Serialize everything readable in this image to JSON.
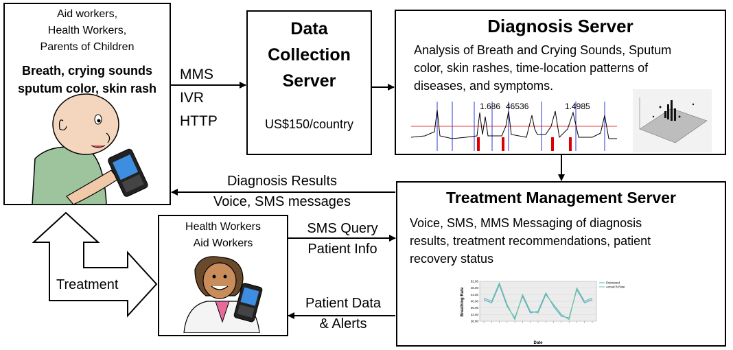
{
  "user_box": {
    "subtitle_lines": [
      "Aid workers,",
      "Health Workers,",
      "Parents of Children"
    ],
    "bold_lines": [
      "Breath, crying sounds",
      "sputum color, skin rash"
    ]
  },
  "protocols": [
    "MMS",
    "IVR",
    "HTTP"
  ],
  "data_collection": {
    "title_lines": [
      "Data",
      "Collection",
      "Server"
    ],
    "cost": "US$150/country"
  },
  "diagnosis_server": {
    "title": "Diagnosis Server",
    "description_lines": [
      "Analysis of Breath and Crying Sounds, Sputum",
      "color, skin rashes, time-location patterns of",
      "diseases, and symptoms."
    ],
    "waveform_labels": [
      "1.686",
      "46536",
      "1.4985"
    ]
  },
  "diagnosis_results": {
    "lines": [
      "Diagnosis Results",
      "Voice, SMS messages"
    ]
  },
  "treatment_server": {
    "title": "Treatment Management Server",
    "description_lines": [
      "Voice, SMS, MMS Messaging of diagnosis",
      "results, treatment recommendations, patient",
      "recovery status"
    ]
  },
  "health_box": {
    "lines": [
      "Health Workers",
      "Aid Workers"
    ]
  },
  "sms_query": {
    "lines": [
      "SMS Query",
      "Patient Info"
    ]
  },
  "patient_data": {
    "lines": [
      "Patient Data",
      "& Alerts"
    ]
  },
  "treatment_label": "Treatment",
  "breathing_chart": {
    "type": "line",
    "ylabel": "Breathing Rate",
    "xlabel": "Date",
    "ylim": [
      28,
      52
    ],
    "yticks": [
      "52.00",
      "48.00",
      "44.00",
      "40.00",
      "36.00",
      "32.00",
      "28.00"
    ],
    "legend": [
      "Estimated",
      "Actual B.Rate"
    ],
    "series": [
      {
        "name": "Estimated",
        "values": [
          41,
          39,
          50,
          37,
          30,
          43,
          33,
          34,
          45,
          37,
          31,
          30,
          47,
          39,
          41
        ],
        "color": "#5aa9d6"
      },
      {
        "name": "Actual B.Rate",
        "values": [
          42,
          40,
          51,
          38,
          29,
          44,
          34,
          33,
          44,
          38,
          32,
          29,
          48,
          40,
          42
        ],
        "color": "#6cc39a"
      }
    ]
  },
  "colors": {
    "line": "#000000",
    "waveform_red": "#dd0000",
    "waveform_blue": "#2a3ad6"
  }
}
